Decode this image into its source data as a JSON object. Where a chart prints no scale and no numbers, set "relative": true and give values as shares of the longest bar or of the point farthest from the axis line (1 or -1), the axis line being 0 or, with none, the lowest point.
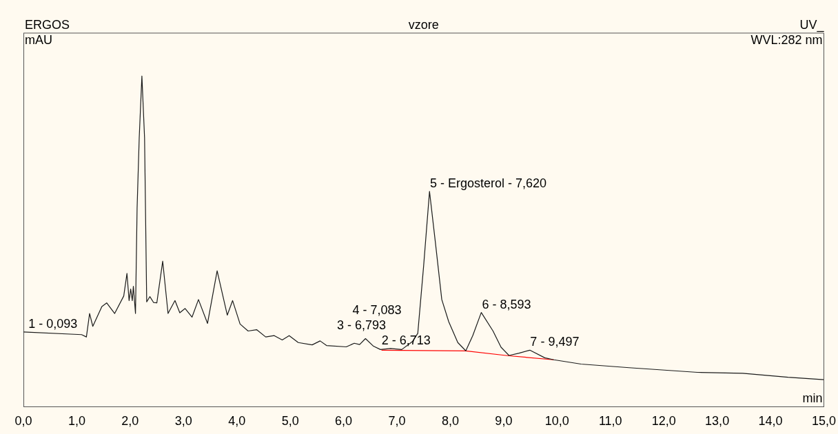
{
  "chart_data": {
    "type": "line",
    "title": "vzore",
    "xlabel": "min",
    "ylabel": "mAU",
    "relative": true,
    "annotations": [
      "ERGOS",
      "UV_",
      "WVL:282 nm",
      {
        "text": "1 - 0,093",
        "x": 0.093,
        "y": 0.226
      },
      {
        "text": "2 - 6,713",
        "x": 6.713,
        "y": 0.176
      },
      {
        "text": "3 - 6,793",
        "x": 6.793,
        "y": 0.176
      },
      {
        "text": "4 - 7,083",
        "x": 7.083,
        "y": 0.176
      },
      {
        "text": "5 - Ergosterol - 7,620",
        "x": 7.62,
        "y": 0.651
      },
      {
        "text": "6 - 8,593",
        "x": 8.593,
        "y": 0.285
      },
      {
        "text": "7 - 9,497",
        "x": 9.497,
        "y": 0.171
      }
    ],
    "xlim": [
      0,
      15
    ],
    "xticks": [
      {
        "value": 0,
        "label": "0,0"
      },
      {
        "value": 1,
        "label": "1,0"
      },
      {
        "value": 2,
        "label": "2,0"
      },
      {
        "value": 3,
        "label": "3,0"
      },
      {
        "value": 4,
        "label": "4,0"
      },
      {
        "value": 5,
        "label": "5,0"
      },
      {
        "value": 6,
        "label": "6,0"
      },
      {
        "value": 7,
        "label": "7,0"
      },
      {
        "value": 8,
        "label": "8,0"
      },
      {
        "value": 9,
        "label": "9,0"
      },
      {
        "value": 10,
        "label": "10,0"
      },
      {
        "value": 11,
        "label": "11,0"
      },
      {
        "value": 12,
        "label": "12,0"
      },
      {
        "value": 13,
        "label": "13,0"
      },
      {
        "value": 14,
        "label": "14,0"
      },
      {
        "value": 15,
        "label": "15,0"
      }
    ],
    "grid": false,
    "legend": false,
    "marker": "none",
    "line_style": "solid",
    "series": [
      {
        "color": "#1a1a1a",
        "x": [
          0,
          1.09,
          1.18,
          1.24,
          1.3,
          1.47,
          1.56,
          1.71,
          1.88,
          1.94,
          1.98,
          2.01,
          2.04,
          2.06,
          2.1,
          2.13,
          2.17,
          2.22,
          2.27,
          2.31,
          2.37,
          2.44,
          2.5,
          2.61,
          2.71,
          2.84,
          2.93,
          3.03,
          3.16,
          3.28,
          3.45,
          3.63,
          3.82,
          3.92,
          4.06,
          4.21,
          4.37,
          4.54,
          4.7,
          4.85,
          4.98,
          5.15,
          5.41,
          5.56,
          5.68,
          6.05,
          6.2,
          6.3,
          6.41,
          6.56,
          6.69,
          6.88,
          7.09,
          7.29,
          7.39,
          7.5,
          7.61,
          7.72,
          7.84,
          7.97,
          8.14,
          8.29,
          8.42,
          8.58,
          8.8,
          8.95,
          9.1,
          9.29,
          9.49,
          9.77,
          9.94,
          10.45,
          11.35,
          12.63,
          13.48,
          14.33,
          15.0
        ],
        "values": [
          0.226,
          0.218,
          0.211,
          0.282,
          0.243,
          0.303,
          0.314,
          0.282,
          0.335,
          0.403,
          0.321,
          0.356,
          0.321,
          0.364,
          0.282,
          0.6,
          0.814,
          1.0,
          0.814,
          0.317,
          0.333,
          0.315,
          0.314,
          0.44,
          0.282,
          0.321,
          0.284,
          0.297,
          0.271,
          0.324,
          0.252,
          0.411,
          0.277,
          0.321,
          0.25,
          0.229,
          0.233,
          0.211,
          0.215,
          0.202,
          0.215,
          0.194,
          0.187,
          0.199,
          0.185,
          0.181,
          0.192,
          0.188,
          0.206,
          0.183,
          0.173,
          0.176,
          0.173,
          0.197,
          0.222,
          0.426,
          0.651,
          0.497,
          0.324,
          0.257,
          0.194,
          0.169,
          0.215,
          0.285,
          0.229,
          0.18,
          0.155,
          0.162,
          0.171,
          0.148,
          0.142,
          0.129,
          0.118,
          0.104,
          0.101,
          0.089,
          0.082
        ]
      },
      {
        "color": "#ff0000",
        "x": [
          6.71,
          8.29,
          9.1,
          9.94
        ],
        "values": [
          0.171,
          0.169,
          0.154,
          0.142
        ]
      }
    ]
  }
}
